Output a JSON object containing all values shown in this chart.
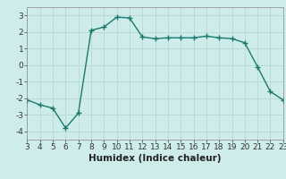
{
  "x": [
    3,
    4,
    5,
    6,
    7,
    8,
    9,
    10,
    11,
    12,
    13,
    14,
    15,
    16,
    17,
    18,
    19,
    20,
    21,
    22,
    23
  ],
  "y": [
    -2.1,
    -2.4,
    -2.6,
    -3.8,
    -2.9,
    2.1,
    2.3,
    2.9,
    2.85,
    1.7,
    1.6,
    1.65,
    1.65,
    1.65,
    1.75,
    1.65,
    1.6,
    1.35,
    -0.1,
    -1.6,
    -2.1
  ],
  "line_color": "#1a7a6e",
  "bg_color": "#ceecea",
  "grid_color": "#b8d8d5",
  "xlabel": "Humidex (Indice chaleur)",
  "xlim": [
    3,
    23
  ],
  "ylim": [
    -4.5,
    3.5
  ],
  "xticks": [
    3,
    4,
    5,
    6,
    7,
    8,
    9,
    10,
    11,
    12,
    13,
    14,
    15,
    16,
    17,
    18,
    19,
    20,
    21,
    22,
    23
  ],
  "yticks": [
    -4,
    -3,
    -2,
    -1,
    0,
    1,
    2,
    3
  ],
  "marker": "+",
  "markersize": 4,
  "linewidth": 1.0,
  "xlabel_fontsize": 7.5,
  "tick_fontsize": 6.5
}
